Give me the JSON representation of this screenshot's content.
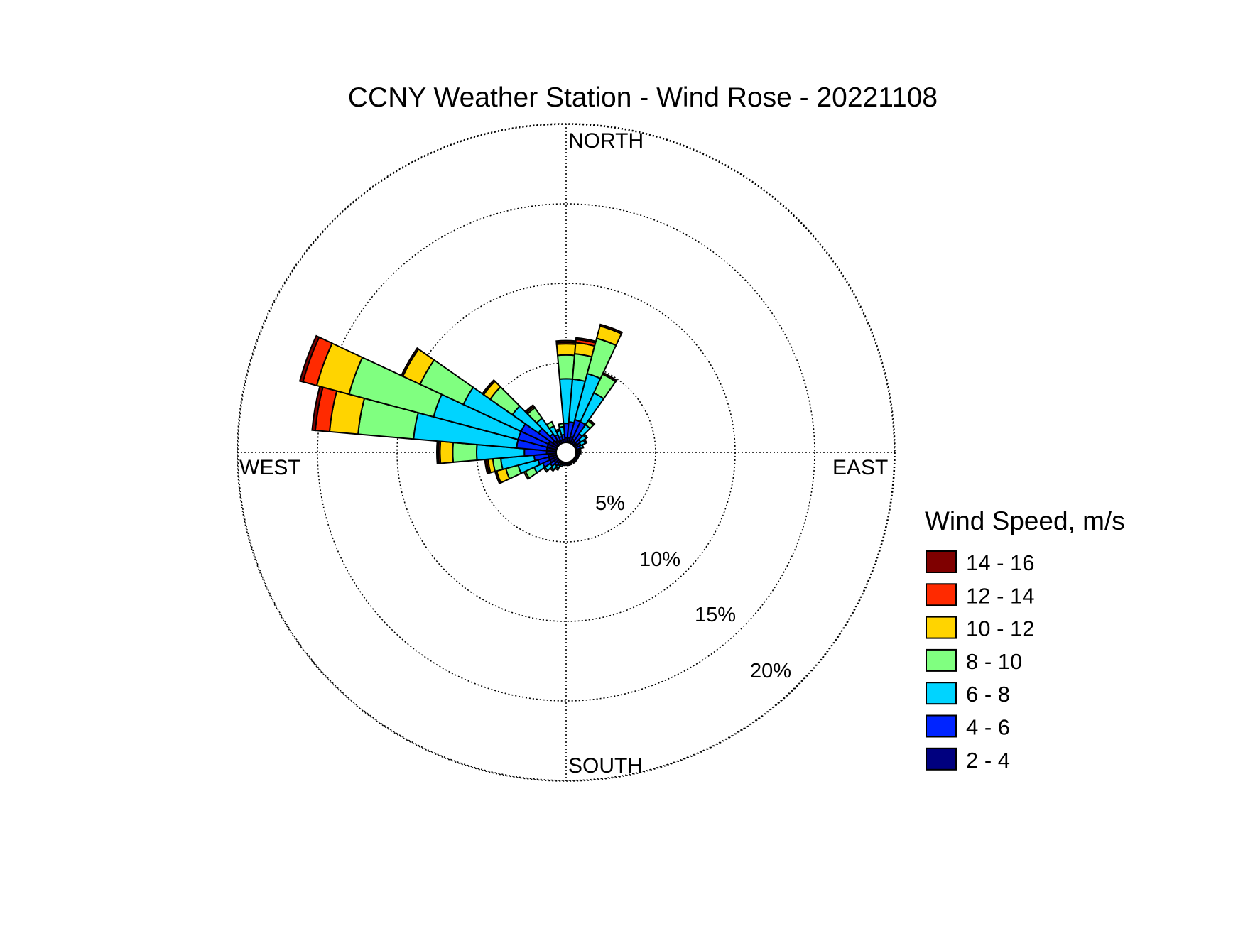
{
  "chart_data": {
    "type": "wind-rose",
    "title": "CCNY Weather Station - Wind Rose - 20221108",
    "direction_labels": {
      "north": "NORTH",
      "east": "EAST",
      "south": "SOUTH",
      "west": "WEST"
    },
    "ring_values": [
      5,
      10,
      15,
      20
    ],
    "ring_labels": [
      "5%",
      "10%",
      "15%",
      "20%"
    ],
    "grid": true,
    "legend": {
      "title": "Wind Speed, m/s",
      "placement": "right",
      "bins": [
        {
          "label": "14 - 16",
          "color": "#7f0000"
        },
        {
          "label": "12 - 14",
          "color": "#ff2a00"
        },
        {
          "label": "10 - 12",
          "color": "#ffd400"
        },
        {
          "label": "8 - 10",
          "color": "#80ff80"
        },
        {
          "label": "6 - 8",
          "color": "#00d4ff"
        },
        {
          "label": "4 - 6",
          "color": "#0024ff"
        },
        {
          "label": "2 - 4",
          "color": "#00007f"
        }
      ]
    },
    "bin_order_inner_to_outer": [
      "2 - 4",
      "4 - 6",
      "6 - 8",
      "8 - 10",
      "10 - 12",
      "12 - 14",
      "14 - 16"
    ],
    "sector_width_deg": 10,
    "sectors": [
      {
        "direction_deg": 0,
        "cumulative_pct": [
          0.3,
          1.2,
          4.0,
          5.5,
          6.2,
          6.3,
          6.4
        ]
      },
      {
        "direction_deg": 10,
        "cumulative_pct": [
          0.3,
          1.3,
          4.0,
          5.6,
          6.3,
          6.5,
          6.6
        ]
      },
      {
        "direction_deg": 20,
        "cumulative_pct": [
          0.4,
          1.5,
          4.5,
          6.8,
          7.6,
          7.6,
          7.7
        ]
      },
      {
        "direction_deg": 30,
        "cumulative_pct": [
          0.3,
          1.5,
          3.5,
          4.8,
          4.8,
          4.8,
          4.9
        ]
      },
      {
        "direction_deg": 40,
        "cumulative_pct": [
          0.2,
          0.8,
          1.5,
          1.8,
          1.8,
          1.8,
          1.9
        ]
      },
      {
        "direction_deg": 50,
        "cumulative_pct": [
          0.2,
          0.5,
          0.9,
          1.0,
          1.0,
          1.0,
          1.0
        ]
      },
      {
        "direction_deg": 60,
        "cumulative_pct": [
          0.2,
          0.4,
          0.7,
          0.7,
          0.7,
          0.7,
          0.8
        ]
      },
      {
        "direction_deg": 70,
        "cumulative_pct": [
          0.1,
          0.3,
          0.5,
          0.5,
          0.5,
          0.5,
          0.5
        ]
      },
      {
        "direction_deg": 80,
        "cumulative_pct": [
          0.1,
          0.2,
          0.3,
          0.3,
          0.3,
          0.3,
          0.3
        ]
      },
      {
        "direction_deg": 90,
        "cumulative_pct": [
          0.1,
          0.2,
          0.3,
          0.3,
          0.3,
          0.3,
          0.3
        ]
      },
      {
        "direction_deg": 100,
        "cumulative_pct": [
          0.1,
          0.2,
          0.2,
          0.2,
          0.2,
          0.2,
          0.2
        ]
      },
      {
        "direction_deg": 110,
        "cumulative_pct": [
          0.1,
          0.2,
          0.2,
          0.2,
          0.2,
          0.2,
          0.2
        ]
      },
      {
        "direction_deg": 120,
        "cumulative_pct": [
          0.1,
          0.2,
          0.2,
          0.2,
          0.2,
          0.2,
          0.2
        ]
      },
      {
        "direction_deg": 130,
        "cumulative_pct": [
          0.1,
          0.2,
          0.2,
          0.2,
          0.2,
          0.2,
          0.2
        ]
      },
      {
        "direction_deg": 140,
        "cumulative_pct": [
          0.1,
          0.2,
          0.2,
          0.2,
          0.2,
          0.2,
          0.2
        ]
      },
      {
        "direction_deg": 150,
        "cumulative_pct": [
          0.1,
          0.1,
          0.1,
          0.1,
          0.1,
          0.1,
          0.1
        ]
      },
      {
        "direction_deg": 160,
        "cumulative_pct": [
          0.1,
          0.2,
          0.2,
          0.2,
          0.2,
          0.2,
          0.2
        ]
      },
      {
        "direction_deg": 170,
        "cumulative_pct": [
          0.1,
          0.2,
          0.2,
          0.2,
          0.2,
          0.2,
          0.2
        ]
      },
      {
        "direction_deg": 180,
        "cumulative_pct": [
          0.1,
          0.1,
          0.1,
          0.1,
          0.1,
          0.1,
          0.1
        ]
      },
      {
        "direction_deg": 190,
        "cumulative_pct": [
          0.1,
          0.2,
          0.2,
          0.2,
          0.2,
          0.2,
          0.2
        ]
      },
      {
        "direction_deg": 200,
        "cumulative_pct": [
          0.1,
          0.2,
          0.3,
          0.3,
          0.3,
          0.3,
          0.3
        ]
      },
      {
        "direction_deg": 210,
        "cumulative_pct": [
          0.1,
          0.3,
          0.5,
          0.6,
          0.6,
          0.6,
          0.6
        ]
      },
      {
        "direction_deg": 220,
        "cumulative_pct": [
          0.2,
          0.4,
          0.7,
          0.8,
          0.8,
          0.8,
          0.8
        ]
      },
      {
        "direction_deg": 230,
        "cumulative_pct": [
          0.3,
          0.6,
          1.0,
          1.1,
          1.1,
          1.1,
          1.1
        ]
      },
      {
        "direction_deg": 240,
        "cumulative_pct": [
          0.5,
          1.0,
          1.6,
          2.2,
          2.3,
          2.3,
          2.3
        ]
      },
      {
        "direction_deg": 250,
        "cumulative_pct": [
          0.5,
          1.2,
          2.5,
          3.3,
          3.9,
          3.9,
          4.0
        ]
      },
      {
        "direction_deg": 260,
        "cumulative_pct": [
          0.5,
          1.4,
          3.5,
          4.0,
          4.3,
          4.4,
          4.5
        ]
      },
      {
        "direction_deg": 270,
        "cumulative_pct": [
          0.6,
          2.0,
          5.0,
          6.5,
          7.3,
          7.4,
          7.5
        ]
      },
      {
        "direction_deg": 280,
        "cumulative_pct": [
          0.6,
          2.5,
          9.0,
          12.5,
          14.3,
          15.2,
          15.4
        ]
      },
      {
        "direction_deg": 290,
        "cumulative_pct": [
          0.6,
          2.5,
          8.0,
          13.5,
          15.6,
          16.5,
          16.7
        ]
      },
      {
        "direction_deg": 300,
        "cumulative_pct": [
          0.6,
          2.5,
          6.5,
          9.5,
          10.7,
          10.7,
          10.8
        ]
      },
      {
        "direction_deg": 310,
        "cumulative_pct": [
          0.4,
          1.5,
          3.5,
          5.2,
          5.7,
          5.7,
          5.8
        ]
      },
      {
        "direction_deg": 320,
        "cumulative_pct": [
          0.3,
          0.8,
          2.0,
          2.8,
          2.9,
          2.9,
          3.0
        ]
      },
      {
        "direction_deg": 330,
        "cumulative_pct": [
          0.2,
          0.6,
          1.2,
          1.5,
          1.5,
          1.5,
          1.5
        ]
      },
      {
        "direction_deg": 340,
        "cumulative_pct": [
          0.2,
          0.4,
          0.8,
          0.9,
          0.9,
          0.9,
          0.9
        ]
      },
      {
        "direction_deg": 350,
        "cumulative_pct": [
          0.2,
          0.5,
          1.0,
          1.2,
          1.2,
          1.2,
          1.2
        ]
      }
    ]
  }
}
